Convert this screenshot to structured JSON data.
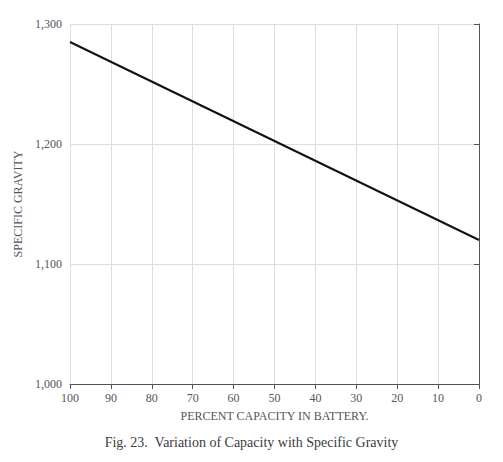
{
  "chart_data": {
    "type": "line",
    "title": "Fig. 23.  Variation of Capacity with Specific Gravity",
    "x_label": "PERCENT CAPACITY IN BATTERY.",
    "y_label": "SPECIFIC GRAVITY",
    "x": [
      100,
      0
    ],
    "values": [
      1285,
      1120
    ],
    "color": "#111111",
    "xlim": [
      100,
      0
    ],
    "xticks": [
      100,
      90,
      80,
      70,
      60,
      50,
      40,
      30,
      20,
      10,
      0
    ],
    "ylim": [
      1000,
      1300
    ],
    "yticks": [
      {
        "value": 1000,
        "label": "1,000"
      },
      {
        "value": 1100,
        "label": "1,100"
      },
      {
        "value": 1200,
        "label": "1,200"
      },
      {
        "value": 1300,
        "label": "1,300"
      }
    ],
    "grid": true
  }
}
